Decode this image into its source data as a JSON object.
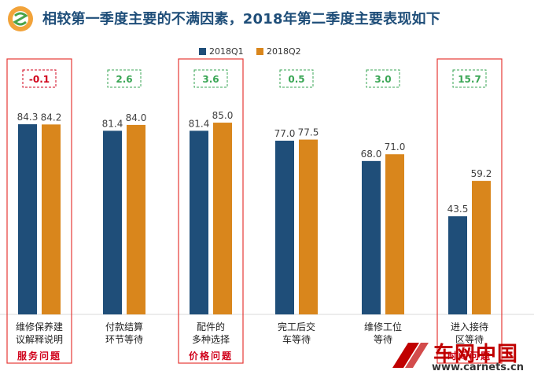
{
  "header": {
    "title": "相较第一季度主要的不满因素，2018年第二季度主要表现如下"
  },
  "watermark": {
    "brand": "车网中国",
    "url": "www.carnets.cn"
  },
  "colors": {
    "q1": "#1f4e79",
    "q2": "#d9861c",
    "diff_red": "#d0021b",
    "diff_green": "#3aa655",
    "highlight_box": "#e53935",
    "issue_label": "#d0021b",
    "title": "#1f4e79"
  },
  "chart_data": {
    "type": "bar",
    "title": "相较第一季度主要的不满因素，2018年第二季度主要表现如下",
    "legend_position": "top-center",
    "ylim": [
      0,
      100
    ],
    "grid": false,
    "categories": [
      {
        "lines": [
          "维修保养建",
          "议解释说明"
        ],
        "diff": "-0.1",
        "diff_color": "red",
        "highlight": true,
        "issue": "服务问题"
      },
      {
        "lines": [
          "付款结算",
          "环节等待"
        ],
        "diff": "2.6",
        "diff_color": "green",
        "highlight": false,
        "issue": ""
      },
      {
        "lines": [
          "配件的",
          "多种选择"
        ],
        "diff": "3.6",
        "diff_color": "green",
        "highlight": true,
        "issue": "价格问题"
      },
      {
        "lines": [
          "完工后交",
          "车等待"
        ],
        "diff": "0.5",
        "diff_color": "green",
        "highlight": false,
        "issue": ""
      },
      {
        "lines": [
          "维修工位",
          "等待"
        ],
        "diff": "3.0",
        "diff_color": "green",
        "highlight": false,
        "issue": ""
      },
      {
        "lines": [
          "进入接待",
          "区等待"
        ],
        "diff": "15.7",
        "diff_color": "green",
        "highlight": true,
        "issue": "时间问题"
      }
    ],
    "series": [
      {
        "name": "2018Q1",
        "values": [
          84.3,
          81.4,
          81.4,
          77.0,
          68.0,
          43.5
        ]
      },
      {
        "name": "2018Q2",
        "values": [
          84.2,
          84.0,
          85.0,
          77.5,
          71.0,
          59.2
        ]
      }
    ]
  }
}
